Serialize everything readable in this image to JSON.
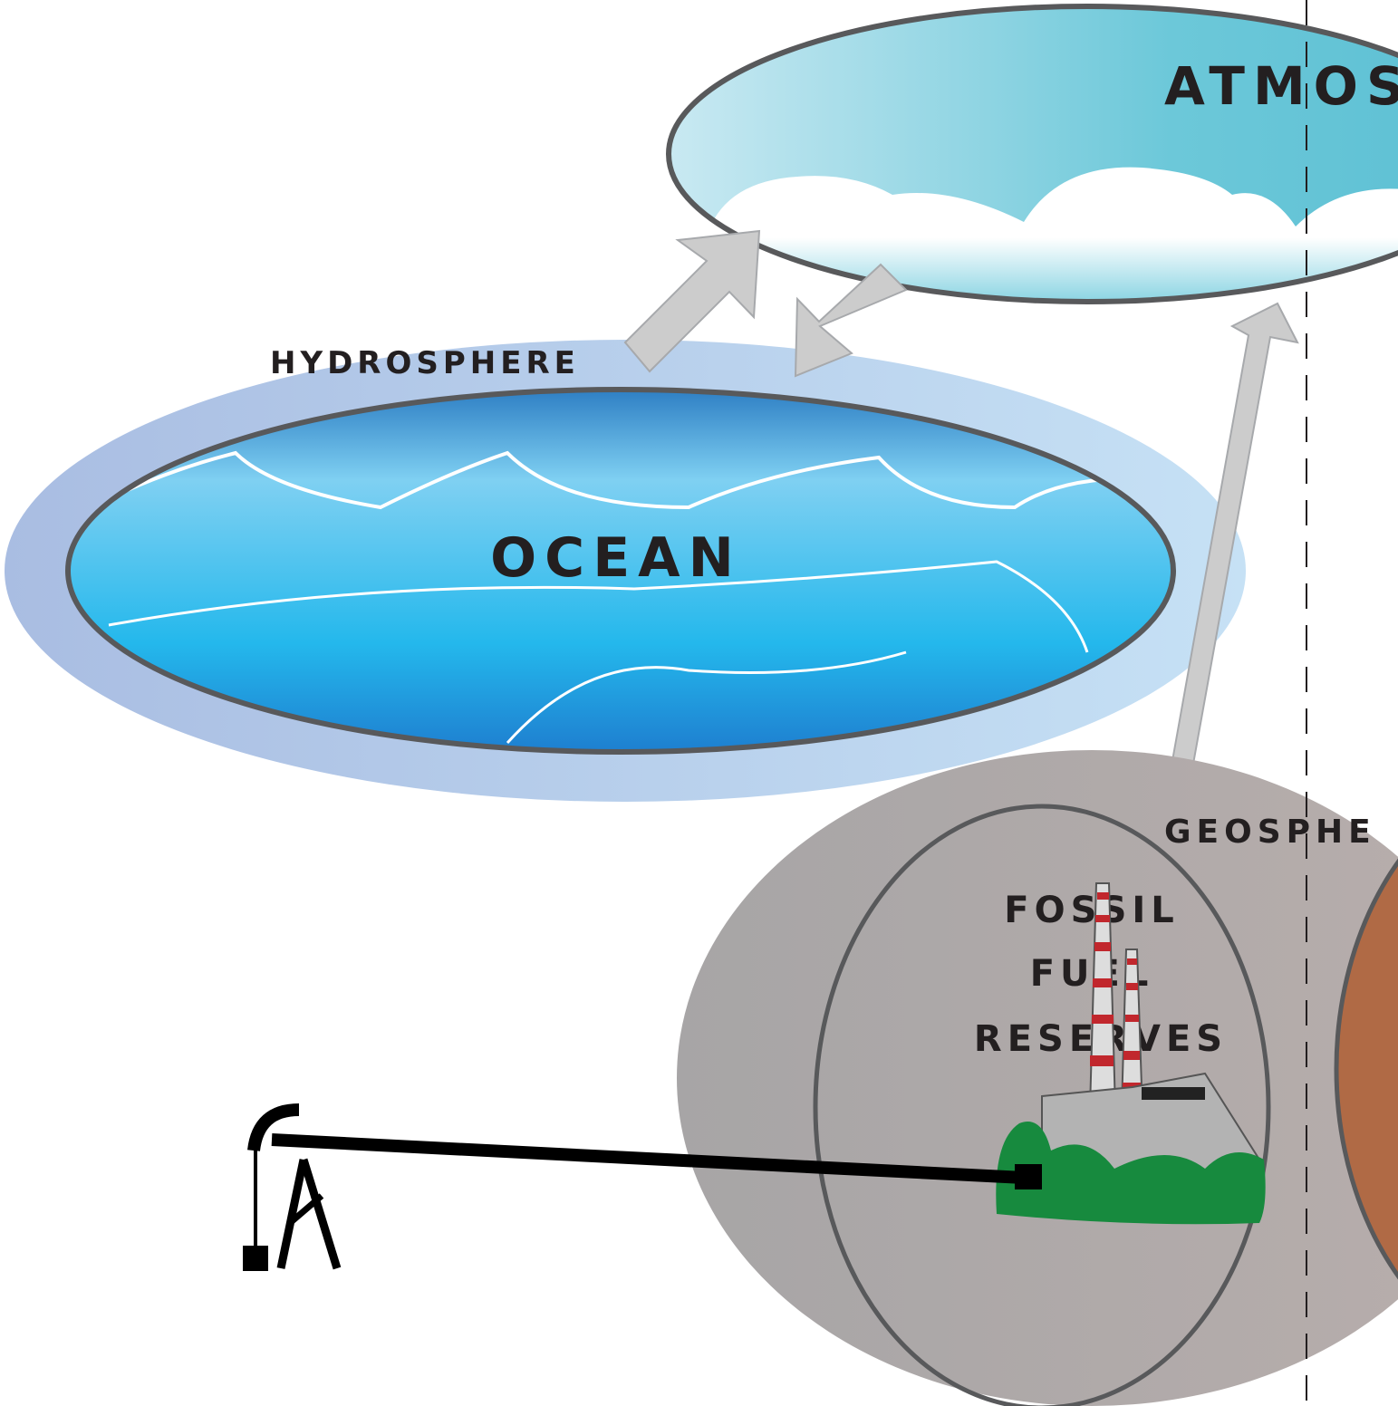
{
  "labels": {
    "atmosphere": "ATMOS",
    "hydrosphere": "HYDROSPHERE",
    "ocean": "OCEAN",
    "geosphere": "GEOSPHE",
    "fossil_fuel_reserves": [
      "FOSSIL",
      "FUEL",
      "RESERVES"
    ]
  }
}
